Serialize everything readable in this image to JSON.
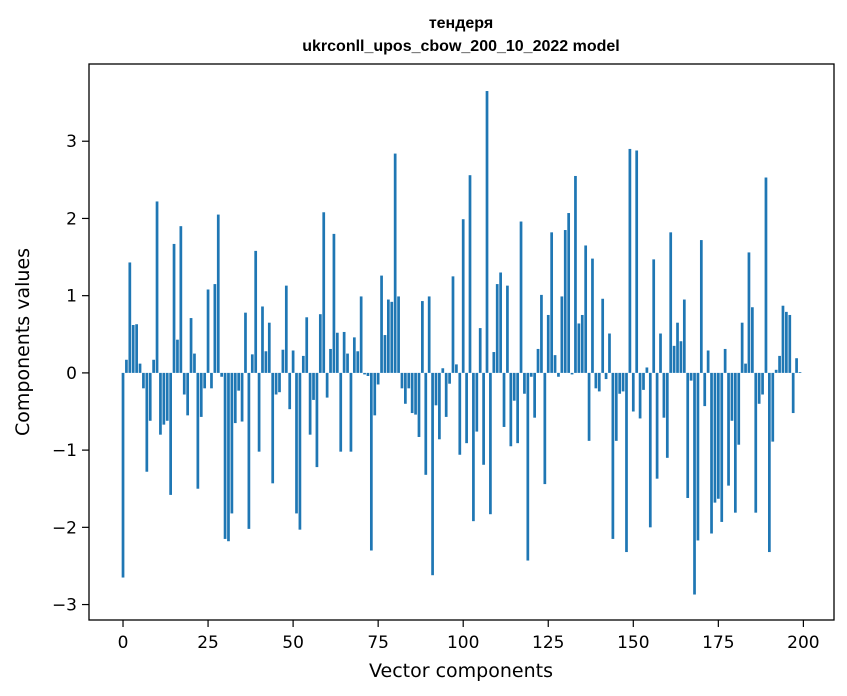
{
  "chart_data": {
    "type": "bar",
    "title_line1": "тендеря",
    "title_line2": "ukrconll_upos_cbow_200_10_2022 model",
    "xlabel": "Vector components",
    "ylabel": "Components values",
    "xlim": [
      -10,
      209
    ],
    "ylim": [
      -3.2,
      4.0
    ],
    "xticks": [
      0,
      25,
      50,
      75,
      100,
      125,
      150,
      175,
      200
    ],
    "xtick_labels": [
      "0",
      "25",
      "50",
      "75",
      "100",
      "125",
      "150",
      "175",
      "200"
    ],
    "yticks": [
      -3,
      -2,
      -1,
      0,
      1,
      2,
      3
    ],
    "ytick_labels": [
      "−3",
      "−2",
      "−1",
      "0",
      "1",
      "2",
      "3"
    ],
    "grid": false,
    "bar_color": "#1f77b4",
    "x": [
      0,
      1,
      2,
      3,
      4,
      5,
      6,
      7,
      8,
      9,
      10,
      11,
      12,
      13,
      14,
      15,
      16,
      17,
      18,
      19,
      20,
      21,
      22,
      23,
      24,
      25,
      26,
      27,
      28,
      29,
      30,
      31,
      32,
      33,
      34,
      35,
      36,
      37,
      38,
      39,
      40,
      41,
      42,
      43,
      44,
      45,
      46,
      47,
      48,
      49,
      50,
      51,
      52,
      53,
      54,
      55,
      56,
      57,
      58,
      59,
      60,
      61,
      62,
      63,
      64,
      65,
      66,
      67,
      68,
      69,
      70,
      71,
      72,
      73,
      74,
      75,
      76,
      77,
      78,
      79,
      80,
      81,
      82,
      83,
      84,
      85,
      86,
      87,
      88,
      89,
      90,
      91,
      92,
      93,
      94,
      95,
      96,
      97,
      98,
      99,
      100,
      101,
      102,
      103,
      104,
      105,
      106,
      107,
      108,
      109,
      110,
      111,
      112,
      113,
      114,
      115,
      116,
      117,
      118,
      119,
      120,
      121,
      122,
      123,
      124,
      125,
      126,
      127,
      128,
      129,
      130,
      131,
      132,
      133,
      134,
      135,
      136,
      137,
      138,
      139,
      140,
      141,
      142,
      143,
      144,
      145,
      146,
      147,
      148,
      149,
      150,
      151,
      152,
      153,
      154,
      155,
      156,
      157,
      158,
      159,
      160,
      161,
      162,
      163,
      164,
      165,
      166,
      167,
      168,
      169,
      170,
      171,
      172,
      173,
      174,
      175,
      176,
      177,
      178,
      179,
      180,
      181,
      182,
      183,
      184,
      185,
      186,
      187,
      188,
      189,
      190,
      191,
      192,
      193,
      194,
      195,
      196,
      197,
      198,
      199
    ],
    "values": [
      -2.65,
      0.17,
      1.43,
      0.62,
      0.63,
      0.12,
      -0.2,
      -1.28,
      -0.62,
      0.17,
      2.22,
      -0.8,
      -0.67,
      -0.62,
      -1.58,
      1.67,
      0.43,
      1.9,
      -0.28,
      -0.55,
      0.71,
      0.25,
      -1.5,
      -0.57,
      -0.2,
      1.08,
      -0.2,
      1.15,
      2.05,
      -0.05,
      -2.15,
      -2.18,
      -1.82,
      -0.65,
      -0.23,
      -0.63,
      0.78,
      -2.02,
      0.24,
      1.58,
      -1.02,
      0.86,
      0.28,
      0.65,
      -1.43,
      -0.28,
      -0.25,
      0.3,
      1.13,
      -0.47,
      0.29,
      -1.82,
      -2.03,
      0.22,
      0.72,
      -0.8,
      -0.35,
      -1.22,
      0.76,
      2.08,
      -0.32,
      0.31,
      1.8,
      0.52,
      -1.02,
      0.53,
      0.25,
      -1.02,
      0.46,
      0.28,
      0.99,
      -0.02,
      -0.04,
      -2.3,
      -0.55,
      -0.15,
      1.26,
      0.49,
      0.95,
      0.92,
      2.84,
      0.99,
      -0.2,
      -0.4,
      -0.2,
      -0.52,
      -0.54,
      -0.83,
      0.93,
      -1.32,
      0.99,
      -2.62,
      -0.42,
      -0.86,
      0.06,
      -0.57,
      -0.14,
      1.25,
      0.11,
      -1.06,
      1.99,
      -0.91,
      2.56,
      -1.92,
      -0.76,
      0.58,
      -1.19,
      3.65,
      -1.83,
      0.27,
      1.15,
      1.3,
      -0.7,
      1.13,
      -0.95,
      -0.36,
      -0.91,
      1.96,
      -0.27,
      -2.43,
      -0.05,
      -0.58,
      0.31,
      1.01,
      -1.44,
      0.75,
      1.82,
      0.23,
      -0.05,
      0.99,
      1.85,
      2.07,
      -0.02,
      2.55,
      0.64,
      0.75,
      1.65,
      -0.88,
      1.48,
      -0.2,
      -0.24,
      0.96,
      -0.08,
      0.51,
      -2.15,
      -0.88,
      -0.27,
      -0.24,
      -2.32,
      2.9,
      -0.5,
      2.88,
      -0.59,
      -0.22,
      0.07,
      -2.0,
      1.47,
      -1.37,
      0.51,
      -0.58,
      -1.1,
      1.82,
      0.35,
      0.65,
      0.41,
      0.95,
      -1.62,
      -0.1,
      -2.87,
      -2.17,
      1.72,
      -0.43,
      0.29,
      -2.08,
      -1.68,
      -1.63,
      -1.93,
      0.31,
      -1.46,
      -0.62,
      -1.81,
      -0.93,
      0.65,
      0.12,
      1.56,
      0.85,
      -1.81,
      -0.4,
      -0.28,
      2.53,
      -2.32,
      -0.89,
      0.04,
      0.22,
      0.87,
      0.79,
      0.75,
      -0.52,
      0.19,
      0.01
    ]
  }
}
